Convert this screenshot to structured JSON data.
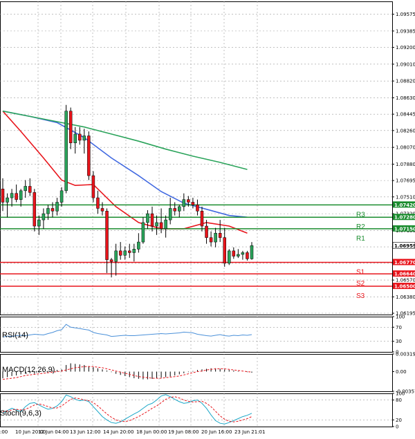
{
  "chart_data": [
    {
      "type": "candlestick",
      "panel": "price",
      "ylim": [
        1.0618,
        1.0972
      ],
      "y_tick_labels": [
        "1.09575",
        "1.09385",
        "1.09200",
        "1.09010",
        "1.08820",
        "1.08630",
        "1.08445",
        "1.08260",
        "1.08070",
        "1.07880",
        "1.07695",
        "1.07510",
        "1.07320",
        "1.07130",
        "1.06945",
        "1.06760",
        "1.06570",
        "1.06380",
        "1.06195"
      ],
      "y_ticks": [
        1.09575,
        1.09385,
        1.092,
        1.0901,
        1.0882,
        1.0863,
        1.08445,
        1.0826,
        1.0807,
        1.0788,
        1.07695,
        1.0751,
        1.0732,
        1.0713,
        1.06945,
        1.0676,
        1.0657,
        1.0638,
        1.06195
      ],
      "x_tick_labels": [
        "10 Jun 20:00",
        "12 Jun 04:00",
        "13 Jun 12:00",
        "14 Jun 20:00",
        "18 Jun 00:00",
        "19 Jun 08:00",
        "20 Jun 16:00",
        "23 Jun 21:01"
      ],
      "x_tick_first": ":00",
      "grid": true,
      "candles": [
        [
          1.076,
          1.0772,
          1.0735,
          1.0745
        ],
        [
          1.0745,
          1.0755,
          1.0728,
          1.075
        ],
        [
          1.075,
          1.076,
          1.074,
          1.0755
        ],
        [
          1.0755,
          1.0765,
          1.0745,
          1.0748
        ],
        [
          1.0748,
          1.076,
          1.074,
          1.0758
        ],
        [
          1.0758,
          1.077,
          1.075,
          1.0763
        ],
        [
          1.0763,
          1.0772,
          1.0752,
          1.0756
        ],
        [
          1.0756,
          1.076,
          1.0712,
          1.0718
        ],
        [
          1.0718,
          1.073,
          1.0708,
          1.0725
        ],
        [
          1.0725,
          1.0738,
          1.0715,
          1.0732
        ],
        [
          1.0732,
          1.0742,
          1.0725,
          1.0738
        ],
        [
          1.0738,
          1.0745,
          1.0728,
          1.0735
        ],
        [
          1.0735,
          1.075,
          1.073,
          1.0745
        ],
        [
          1.0745,
          1.0762,
          1.074,
          1.0758
        ],
        [
          1.0758,
          1.0855,
          1.0755,
          1.0848
        ],
        [
          1.0848,
          1.0852,
          1.0805,
          1.0812
        ],
        [
          1.0812,
          1.083,
          1.08,
          1.0822
        ],
        [
          1.0822,
          1.083,
          1.081,
          1.0815
        ],
        [
          1.0815,
          1.0828,
          1.08,
          1.082
        ],
        [
          1.082,
          1.0825,
          1.077,
          1.0775
        ],
        [
          1.0775,
          1.078,
          1.0745,
          1.075
        ],
        [
          1.075,
          1.0758,
          1.0732,
          1.0738
        ],
        [
          1.0738,
          1.0745,
          1.073,
          1.0735
        ],
        [
          1.0735,
          1.0738,
          1.0665,
          1.068
        ],
        [
          1.068,
          1.0682,
          1.066,
          1.0678
        ],
        [
          1.0678,
          1.0698,
          1.0662,
          1.069
        ],
        [
          1.069,
          1.07,
          1.068,
          1.0685
        ],
        [
          1.0685,
          1.0695,
          1.068,
          1.069
        ],
        [
          1.069,
          1.0698,
          1.0682,
          1.0688
        ],
        [
          1.0688,
          1.0698,
          1.0678,
          1.0692
        ],
        [
          1.0692,
          1.071,
          1.0688,
          1.07
        ],
        [
          1.07,
          1.0728,
          1.0698,
          1.0722
        ],
        [
          1.0722,
          1.0736,
          1.0715,
          1.0732
        ],
        [
          1.0732,
          1.074,
          1.0712,
          1.0718
        ],
        [
          1.0718,
          1.073,
          1.0708,
          1.0722
        ],
        [
          1.0722,
          1.0738,
          1.071,
          1.0715
        ],
        [
          1.0715,
          1.073,
          1.0705,
          1.0725
        ],
        [
          1.0725,
          1.075,
          1.072,
          1.0738
        ],
        [
          1.0738,
          1.0745,
          1.073,
          1.0735
        ],
        [
          1.0735,
          1.0742,
          1.0728,
          1.074
        ],
        [
          1.074,
          1.0755,
          1.0735,
          1.0748
        ],
        [
          1.0748,
          1.0752,
          1.074,
          1.0745
        ],
        [
          1.0745,
          1.075,
          1.0738,
          1.0742
        ],
        [
          1.0742,
          1.0748,
          1.073,
          1.0735
        ],
        [
          1.0735,
          1.074,
          1.0712,
          1.0718
        ],
        [
          1.0718,
          1.0725,
          1.0698,
          1.0705
        ],
        [
          1.0705,
          1.0712,
          1.0695,
          1.07
        ],
        [
          1.07,
          1.0716,
          1.0694,
          1.071
        ],
        [
          1.071,
          1.0725,
          1.07,
          1.0705
        ],
        [
          1.0705,
          1.0716,
          1.0672,
          1.0676
        ],
        [
          1.0676,
          1.0692,
          1.0674,
          1.069
        ],
        [
          1.069,
          1.0694,
          1.0681,
          1.0684
        ],
        [
          1.0684,
          1.0692,
          1.0682,
          1.0686
        ],
        [
          1.0686,
          1.069,
          1.068,
          1.0688
        ],
        [
          1.0688,
          1.069,
          1.0679,
          1.0681
        ],
        [
          1.0681,
          1.07,
          1.068,
          1.0696
        ]
      ],
      "overlays": [
        {
          "name": "fast",
          "color": "#e8141b",
          "points": [
            [
              0,
              1.0848
            ],
            [
              4,
              1.0825
            ],
            [
              9,
              1.0795
            ],
            [
              13,
              1.077
            ],
            [
              16,
              1.0764
            ],
            [
              20,
              1.0765
            ],
            [
              25,
              1.074
            ],
            [
              30,
              1.0722
            ],
            [
              35,
              1.0715
            ],
            [
              40,
              1.0715
            ],
            [
              45,
              1.0722
            ],
            [
              50,
              1.0718
            ],
            [
              54,
              1.071
            ]
          ]
        },
        {
          "name": "medium",
          "color": "#4169e1",
          "points": [
            [
              0,
              1.0848
            ],
            [
              6,
              1.0842
            ],
            [
              12,
              1.0835
            ],
            [
              18,
              1.0818
            ],
            [
              24,
              1.0795
            ],
            [
              30,
              1.0775
            ],
            [
              35,
              1.0757
            ],
            [
              40,
              1.0744
            ],
            [
              45,
              1.0737
            ],
            [
              50,
              1.073
            ],
            [
              54,
              1.0728
            ]
          ]
        },
        {
          "name": "slow",
          "color": "#2aa35a",
          "points": [
            [
              0,
              1.0848
            ],
            [
              6,
              1.0842
            ],
            [
              12,
              1.0836
            ],
            [
              18,
              1.083
            ],
            [
              24,
              1.0822
            ],
            [
              30,
              1.0814
            ],
            [
              36,
              1.0805
            ],
            [
              42,
              1.0797
            ],
            [
              48,
              1.079
            ],
            [
              54,
              1.0782
            ]
          ]
        }
      ],
      "levels": [
        {
          "label": "R3",
          "value": 1.0742,
          "value_label": "1.07420",
          "color": "#1a8c2e"
        },
        {
          "label": "R2",
          "value": 1.0728,
          "value_label": "1.07280",
          "color": "#1a8c2e"
        },
        {
          "label": "R1",
          "value": 1.0715,
          "value_label": "1.07150",
          "color": "#1a8c2e"
        },
        {
          "label": "S1",
          "value": 1.0677,
          "value_label": "1.06770",
          "color": "#e8141b"
        },
        {
          "label": "S2",
          "value": 1.0664,
          "value_label": "1.06640",
          "color": "#e8141b"
        },
        {
          "label": "S3",
          "value": 1.065,
          "value_label": "1.06500",
          "color": "#e8141b"
        }
      ],
      "last_price": 1.06959,
      "last_price_label": "1.06959"
    },
    {
      "type": "line",
      "panel": "rsi",
      "title": "RSI(14)",
      "ylim": [
        0,
        100
      ],
      "y_ticks": [
        100,
        70,
        30,
        0
      ],
      "y_tick_labels": [
        "100",
        "70",
        "30",
        "0"
      ],
      "series": [
        {
          "color": "#4a90d9",
          "values": [
            42,
            45,
            44,
            46,
            47,
            46,
            48,
            50,
            49,
            48,
            52,
            55,
            60,
            63,
            78,
            70,
            68,
            66,
            64,
            62,
            55,
            52,
            50,
            48,
            44,
            45,
            46,
            47,
            46,
            46,
            47,
            48,
            49,
            50,
            51,
            52,
            51,
            52,
            53,
            54,
            56,
            55,
            54,
            50,
            48,
            46,
            45,
            47,
            49,
            46,
            45,
            47,
            46,
            48,
            47,
            49
          ]
        }
      ]
    },
    {
      "type": "histogram",
      "panel": "macd",
      "title": "MACD(12,26,9)",
      "ylim": [
        -0.003573,
        0.003197
      ],
      "y_ticks": [
        0.003197,
        0.0,
        -0.003573
      ],
      "y_tick_labels": [
        "0.003197",
        "0.00",
        "-0.003573"
      ],
      "values": [
        -0.0012,
        -0.001,
        -0.0008,
        -0.0007,
        -0.0005,
        -0.0004,
        -0.0003,
        -0.0004,
        -0.0002,
        -0.0001,
        0.0001,
        0.0002,
        0.0003,
        0.0004,
        0.0012,
        0.0015,
        0.0014,
        0.0013,
        0.0012,
        0.001,
        0.0008,
        0.0006,
        0.0004,
        0.0002,
        -0.0001,
        -0.0004,
        -0.0006,
        -0.0008,
        -0.001,
        -0.0012,
        -0.0013,
        -0.0014,
        -0.0014,
        -0.0013,
        -0.0012,
        -0.0011,
        -0.001,
        -0.0009,
        -0.0007,
        -0.0005,
        -0.0003,
        -0.0001,
        0.0001,
        0.0003,
        0.0004,
        0.0005,
        0.0006,
        0.0006,
        0.0005,
        0.0004,
        0.0003,
        0.0002,
        0.0001,
        0.0,
        -0.0001,
        -0.0002
      ],
      "signal": [
        -0.0014,
        -0.0013,
        -0.0012,
        -0.0011,
        -0.0009,
        -0.0007,
        -0.0006,
        -0.0005,
        -0.0004,
        -0.0003,
        -0.0002,
        -0.0001,
        0.0,
        0.0001,
        0.0003,
        0.0005,
        0.0007,
        0.0008,
        0.0009,
        0.0009,
        0.0009,
        0.0008,
        0.0007,
        0.0005,
        0.0003,
        0.0001,
        -0.0001,
        -0.0003,
        -0.0005,
        -0.0007,
        -0.0009,
        -0.001,
        -0.0011,
        -0.0012,
        -0.0012,
        -0.0012,
        -0.0011,
        -0.001,
        -0.0009,
        -0.0008,
        -0.0006,
        -0.0004,
        -0.0002,
        0.0,
        0.0001,
        0.0003,
        0.0004,
        0.0005,
        0.0005,
        0.0005,
        0.0004,
        0.0003,
        0.0002,
        0.0001,
        0.0,
        -0.0001
      ],
      "hist_color": "#000000",
      "signal_color": "#e8141b"
    },
    {
      "type": "line",
      "panel": "stoch",
      "title": "Stoch(9,6,3)",
      "ylim": [
        0,
        100
      ],
      "y_ticks": [
        100,
        80,
        20,
        0
      ],
      "y_tick_labels": [
        "100",
        "80",
        "20",
        "0"
      ],
      "series": [
        {
          "color": "#1aa7c8",
          "values": [
            40,
            48,
            55,
            50,
            45,
            60,
            70,
            72,
            65,
            58,
            52,
            55,
            62,
            75,
            95,
            90,
            82,
            78,
            80,
            75,
            60,
            45,
            30,
            20,
            12,
            10,
            14,
            22,
            30,
            38,
            45,
            55,
            65,
            70,
            80,
            92,
            96,
            90,
            82,
            75,
            70,
            72,
            78,
            80,
            70,
            55,
            35,
            18,
            10,
            8,
            12,
            18,
            24,
            30,
            34,
            40
          ]
        },
        {
          "color": "#e8141b",
          "values": [
            45,
            47,
            50,
            52,
            50,
            52,
            58,
            65,
            68,
            65,
            60,
            56,
            56,
            62,
            72,
            82,
            86,
            84,
            80,
            78,
            72,
            62,
            50,
            38,
            28,
            20,
            16,
            15,
            18,
            24,
            30,
            38,
            46,
            55,
            62,
            72,
            82,
            88,
            90,
            86,
            80,
            76,
            74,
            75,
            76,
            70,
            60,
            46,
            32,
            22,
            16,
            14,
            16,
            20,
            24,
            30
          ]
        }
      ]
    }
  ]
}
